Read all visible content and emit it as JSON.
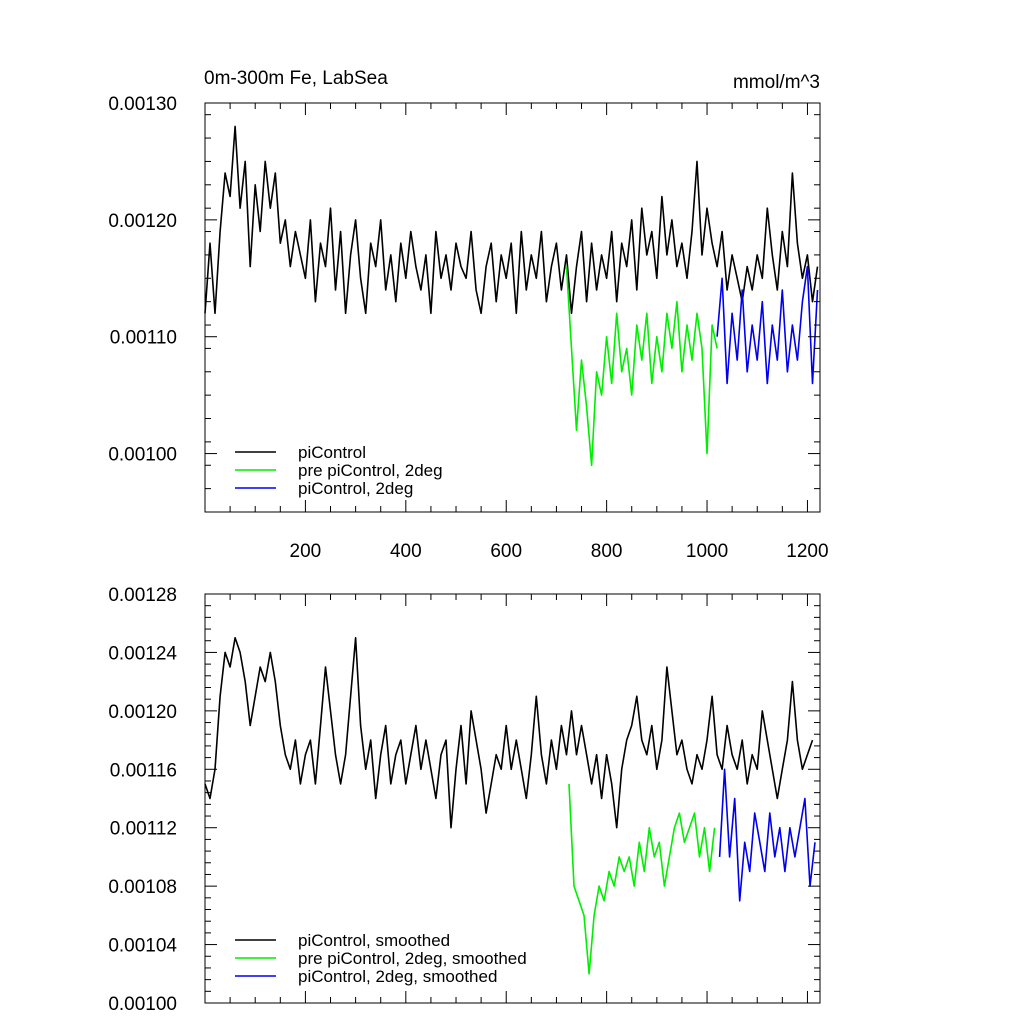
{
  "chart_data": [
    {
      "type": "line",
      "title": "0m-300m Fe, LabSea",
      "units": "mmol/m^3",
      "xlabel": "",
      "ylabel": "",
      "xlim": [
        0,
        1225
      ],
      "ylim": [
        0.00095,
        0.0013
      ],
      "x_ticks": [
        200,
        400,
        600,
        800,
        1000,
        1200
      ],
      "x_tick_labels": [
        "200",
        "400",
        "600",
        "800",
        "1000",
        "1200"
      ],
      "y_ticks": [
        0.001,
        0.0011,
        0.0012,
        0.0013
      ],
      "y_tick_labels": [
        "0.00100",
        "0.00110",
        "0.00120",
        "0.00130"
      ],
      "legend_position": "bottom-left",
      "series": [
        {
          "name": "piControl",
          "color": "#000000",
          "x": [
            0,
            10,
            20,
            30,
            40,
            50,
            60,
            70,
            80,
            90,
            100,
            110,
            120,
            130,
            140,
            150,
            160,
            170,
            180,
            190,
            200,
            210,
            220,
            230,
            240,
            250,
            260,
            270,
            280,
            290,
            300,
            310,
            320,
            330,
            340,
            350,
            360,
            370,
            380,
            390,
            400,
            410,
            420,
            430,
            440,
            450,
            460,
            470,
            480,
            490,
            500,
            510,
            520,
            530,
            540,
            550,
            560,
            570,
            580,
            590,
            600,
            610,
            620,
            630,
            640,
            650,
            660,
            670,
            680,
            690,
            700,
            710,
            720,
            730,
            740,
            750,
            760,
            770,
            780,
            790,
            800,
            810,
            820,
            830,
            840,
            850,
            860,
            870,
            880,
            890,
            900,
            910,
            920,
            930,
            940,
            950,
            960,
            970,
            980,
            990,
            1000,
            1010,
            1020,
            1030,
            1040,
            1050,
            1060,
            1070,
            1080,
            1090,
            1100,
            1110,
            1120,
            1130,
            1140,
            1150,
            1160,
            1170,
            1180,
            1190,
            1200,
            1210,
            1220
          ],
          "y": [
            0.00112,
            0.00118,
            0.00112,
            0.00119,
            0.00124,
            0.00122,
            0.00128,
            0.00121,
            0.00125,
            0.00116,
            0.00123,
            0.00119,
            0.00125,
            0.00121,
            0.00124,
            0.00118,
            0.0012,
            0.00116,
            0.00119,
            0.00117,
            0.00115,
            0.0012,
            0.00113,
            0.00118,
            0.00116,
            0.00121,
            0.00114,
            0.00119,
            0.00112,
            0.00117,
            0.0012,
            0.00115,
            0.00112,
            0.00118,
            0.00116,
            0.0012,
            0.00114,
            0.00117,
            0.00113,
            0.00118,
            0.00115,
            0.00119,
            0.00116,
            0.00114,
            0.00117,
            0.00112,
            0.00119,
            0.00115,
            0.00117,
            0.00114,
            0.00118,
            0.00116,
            0.00115,
            0.00119,
            0.00114,
            0.00112,
            0.00116,
            0.00118,
            0.00113,
            0.00117,
            0.00115,
            0.00118,
            0.00112,
            0.00119,
            0.00114,
            0.00117,
            0.00115,
            0.00119,
            0.00113,
            0.00116,
            0.00118,
            0.00114,
            0.00117,
            0.00112,
            0.00116,
            0.00119,
            0.00113,
            0.00118,
            0.00114,
            0.00117,
            0.00115,
            0.00119,
            0.00113,
            0.00118,
            0.00116,
            0.0012,
            0.00114,
            0.00121,
            0.00117,
            0.00119,
            0.00115,
            0.00122,
            0.00117,
            0.0012,
            0.00116,
            0.00118,
            0.00115,
            0.00119,
            0.00125,
            0.00117,
            0.00121,
            0.00118,
            0.00116,
            0.00119,
            0.00114,
            0.00117,
            0.00115,
            0.00113,
            0.00116,
            0.00114,
            0.00117,
            0.00115,
            0.00121,
            0.00117,
            0.00114,
            0.00119,
            0.00116,
            0.00124,
            0.00118,
            0.00115,
            0.00117,
            0.00113,
            0.00116
          ]
        },
        {
          "name": "pre piControl, 2deg",
          "color": "#00ee00",
          "x": [
            720,
            730,
            740,
            750,
            760,
            770,
            780,
            790,
            800,
            810,
            820,
            830,
            840,
            850,
            860,
            870,
            880,
            890,
            900,
            910,
            920,
            930,
            940,
            950,
            960,
            970,
            980,
            990,
            1000,
            1010,
            1020
          ],
          "y": [
            0.00116,
            0.00109,
            0.00102,
            0.00108,
            0.00104,
            0.00099,
            0.00107,
            0.00105,
            0.0011,
            0.00106,
            0.00112,
            0.00107,
            0.00109,
            0.00105,
            0.00111,
            0.00108,
            0.00112,
            0.00106,
            0.0011,
            0.00107,
            0.00112,
            0.00109,
            0.00113,
            0.00107,
            0.00111,
            0.00108,
            0.00112,
            0.00109,
            0.001,
            0.00111,
            0.00109
          ]
        },
        {
          "name": "piControl, 2deg",
          "color": "#0000ee",
          "x": [
            1020,
            1030,
            1040,
            1050,
            1060,
            1070,
            1080,
            1090,
            1100,
            1110,
            1120,
            1130,
            1140,
            1150,
            1160,
            1170,
            1180,
            1190,
            1200,
            1210,
            1220
          ],
          "y": [
            0.0011,
            0.00115,
            0.00106,
            0.00112,
            0.00108,
            0.00114,
            0.00107,
            0.00111,
            0.00108,
            0.00113,
            0.00106,
            0.00111,
            0.00108,
            0.00114,
            0.00107,
            0.00111,
            0.00108,
            0.00113,
            0.00116,
            0.00106,
            0.00114
          ]
        }
      ]
    },
    {
      "type": "line",
      "title": "",
      "xlabel": "",
      "ylabel": "",
      "xlim": [
        0,
        1225
      ],
      "ylim": [
        0.001,
        0.00128
      ],
      "x_ticks": [
        200,
        400,
        600,
        800,
        1000,
        1200
      ],
      "y_ticks": [
        0.001,
        0.00104,
        0.00108,
        0.00112,
        0.00116,
        0.0012,
        0.00124,
        0.00128
      ],
      "y_tick_labels": [
        "0.00100",
        "0.00104",
        "0.00108",
        "0.00112",
        "0.00116",
        "0.00120",
        "0.00124",
        "0.00128"
      ],
      "legend_position": "bottom-left",
      "series": [
        {
          "name": "piControl, smoothed",
          "color": "#000000",
          "x": [
            0,
            10,
            20,
            30,
            40,
            50,
            60,
            70,
            80,
            90,
            100,
            110,
            120,
            130,
            140,
            150,
            160,
            170,
            180,
            190,
            200,
            210,
            220,
            230,
            240,
            250,
            260,
            270,
            280,
            290,
            300,
            310,
            320,
            330,
            340,
            350,
            360,
            370,
            380,
            390,
            400,
            410,
            420,
            430,
            440,
            450,
            460,
            470,
            480,
            490,
            500,
            510,
            520,
            530,
            540,
            550,
            560,
            570,
            580,
            590,
            600,
            610,
            620,
            630,
            640,
            650,
            660,
            670,
            680,
            690,
            700,
            710,
            720,
            730,
            740,
            750,
            760,
            770,
            780,
            790,
            800,
            810,
            820,
            830,
            840,
            850,
            860,
            870,
            880,
            890,
            900,
            910,
            920,
            930,
            940,
            950,
            960,
            970,
            980,
            990,
            1000,
            1010,
            1020,
            1030,
            1040,
            1050,
            1060,
            1070,
            1080,
            1090,
            1100,
            1110,
            1120,
            1130,
            1140,
            1150,
            1160,
            1170,
            1180,
            1190,
            1200,
            1210
          ],
          "y": [
            0.00115,
            0.00114,
            0.00116,
            0.00121,
            0.00124,
            0.00123,
            0.00125,
            0.00124,
            0.00122,
            0.00119,
            0.00121,
            0.00123,
            0.00122,
            0.00124,
            0.00122,
            0.00119,
            0.00117,
            0.00116,
            0.00118,
            0.00115,
            0.00117,
            0.00118,
            0.00115,
            0.00119,
            0.00123,
            0.0012,
            0.00117,
            0.00115,
            0.00117,
            0.00121,
            0.00125,
            0.00119,
            0.00116,
            0.00118,
            0.00114,
            0.00117,
            0.00119,
            0.00115,
            0.00117,
            0.00118,
            0.00115,
            0.00117,
            0.00119,
            0.00116,
            0.00118,
            0.00116,
            0.00114,
            0.00117,
            0.00118,
            0.00112,
            0.00116,
            0.00119,
            0.00115,
            0.0012,
            0.00118,
            0.00116,
            0.00113,
            0.00115,
            0.00117,
            0.00116,
            0.00119,
            0.00116,
            0.00118,
            0.00116,
            0.00114,
            0.00117,
            0.00121,
            0.00117,
            0.00115,
            0.00118,
            0.00116,
            0.00119,
            0.00117,
            0.0012,
            0.00117,
            0.00119,
            0.00117,
            0.00115,
            0.00117,
            0.00114,
            0.00117,
            0.00115,
            0.00112,
            0.00116,
            0.00118,
            0.00119,
            0.00121,
            0.00118,
            0.00117,
            0.00119,
            0.00116,
            0.00118,
            0.00123,
            0.0012,
            0.00117,
            0.00118,
            0.00116,
            0.00115,
            0.00117,
            0.00116,
            0.00118,
            0.00121,
            0.00117,
            0.00116,
            0.00119,
            0.00117,
            0.00116,
            0.00118,
            0.00115,
            0.00117,
            0.00116,
            0.0012,
            0.00118,
            0.00116,
            0.00114,
            0.00116,
            0.00118,
            0.00122,
            0.00118,
            0.00116,
            0.00117,
            0.00118
          ]
        },
        {
          "name": "pre piControl, 2deg, smoothed",
          "color": "#00ee00",
          "x": [
            725,
            735,
            745,
            755,
            765,
            775,
            785,
            795,
            805,
            815,
            825,
            835,
            845,
            855,
            865,
            875,
            885,
            895,
            905,
            915,
            925,
            935,
            945,
            955,
            965,
            975,
            985,
            995,
            1005,
            1015
          ],
          "y": [
            0.00115,
            0.00108,
            0.00107,
            0.00106,
            0.00102,
            0.00106,
            0.00108,
            0.00107,
            0.00109,
            0.00108,
            0.0011,
            0.00109,
            0.0011,
            0.00108,
            0.00111,
            0.00109,
            0.00112,
            0.0011,
            0.00111,
            0.00108,
            0.0011,
            0.00112,
            0.00113,
            0.00111,
            0.00112,
            0.00113,
            0.0011,
            0.00112,
            0.00109,
            0.00112
          ]
        },
        {
          "name": "piControl, 2deg, smoothed",
          "color": "#0000ee",
          "x": [
            1025,
            1035,
            1045,
            1055,
            1065,
            1075,
            1085,
            1095,
            1105,
            1115,
            1125,
            1135,
            1145,
            1155,
            1165,
            1175,
            1185,
            1195,
            1205,
            1215
          ],
          "y": [
            0.0011,
            0.00116,
            0.0011,
            0.00114,
            0.00107,
            0.00111,
            0.00109,
            0.00113,
            0.00111,
            0.00109,
            0.00113,
            0.0011,
            0.00112,
            0.00109,
            0.00112,
            0.0011,
            0.00112,
            0.00114,
            0.00108,
            0.00111
          ]
        }
      ]
    }
  ]
}
